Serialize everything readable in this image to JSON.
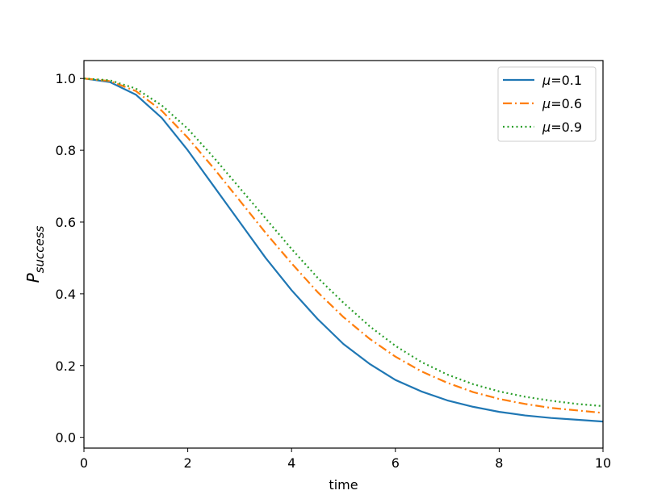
{
  "chart_data": {
    "type": "line",
    "title": "",
    "xlabel": "time",
    "ylabel_main": "P",
    "ylabel_sub": "success",
    "xlim": [
      0,
      10
    ],
    "ylim": [
      -0.03,
      1.05
    ],
    "xticks": [
      0,
      2,
      4,
      6,
      8,
      10
    ],
    "xtick_labels": [
      "0",
      "2",
      "4",
      "6",
      "8",
      "10"
    ],
    "yticks": [
      0.0,
      0.2,
      0.4,
      0.6,
      0.8,
      1.0
    ],
    "ytick_labels": [
      "0.0",
      "0.2",
      "0.4",
      "0.6",
      "0.8",
      "1.0"
    ],
    "grid": false,
    "legend_position": "top-right",
    "x": [
      0,
      0.5,
      1,
      1.5,
      2,
      2.5,
      3,
      3.5,
      4,
      4.5,
      5,
      5.5,
      6,
      6.5,
      7,
      7.5,
      8,
      8.5,
      9,
      9.5,
      10
    ],
    "series": [
      {
        "symbol": "μ",
        "label": "=0.1",
        "color": "#1f77b4",
        "dash": "solid",
        "values": [
          1.0,
          0.99,
          0.955,
          0.89,
          0.8,
          0.7,
          0.6,
          0.5,
          0.41,
          0.33,
          0.26,
          0.205,
          0.16,
          0.128,
          0.103,
          0.085,
          0.071,
          0.061,
          0.054,
          0.049,
          0.044
        ]
      },
      {
        "symbol": "μ",
        "label": "=0.6",
        "color": "#ff7f0e",
        "dash": "dashdot",
        "values": [
          1.0,
          0.993,
          0.965,
          0.91,
          0.835,
          0.75,
          0.66,
          0.57,
          0.485,
          0.405,
          0.335,
          0.275,
          0.225,
          0.184,
          0.152,
          0.126,
          0.107,
          0.093,
          0.082,
          0.075,
          0.068
        ]
      },
      {
        "symbol": "μ",
        "label": "=0.9",
        "color": "#2ca02c",
        "dash": "dotted",
        "values": [
          1.0,
          0.995,
          0.972,
          0.925,
          0.86,
          0.78,
          0.695,
          0.61,
          0.525,
          0.445,
          0.375,
          0.31,
          0.255,
          0.21,
          0.175,
          0.148,
          0.128,
          0.113,
          0.102,
          0.093,
          0.087
        ]
      }
    ]
  }
}
